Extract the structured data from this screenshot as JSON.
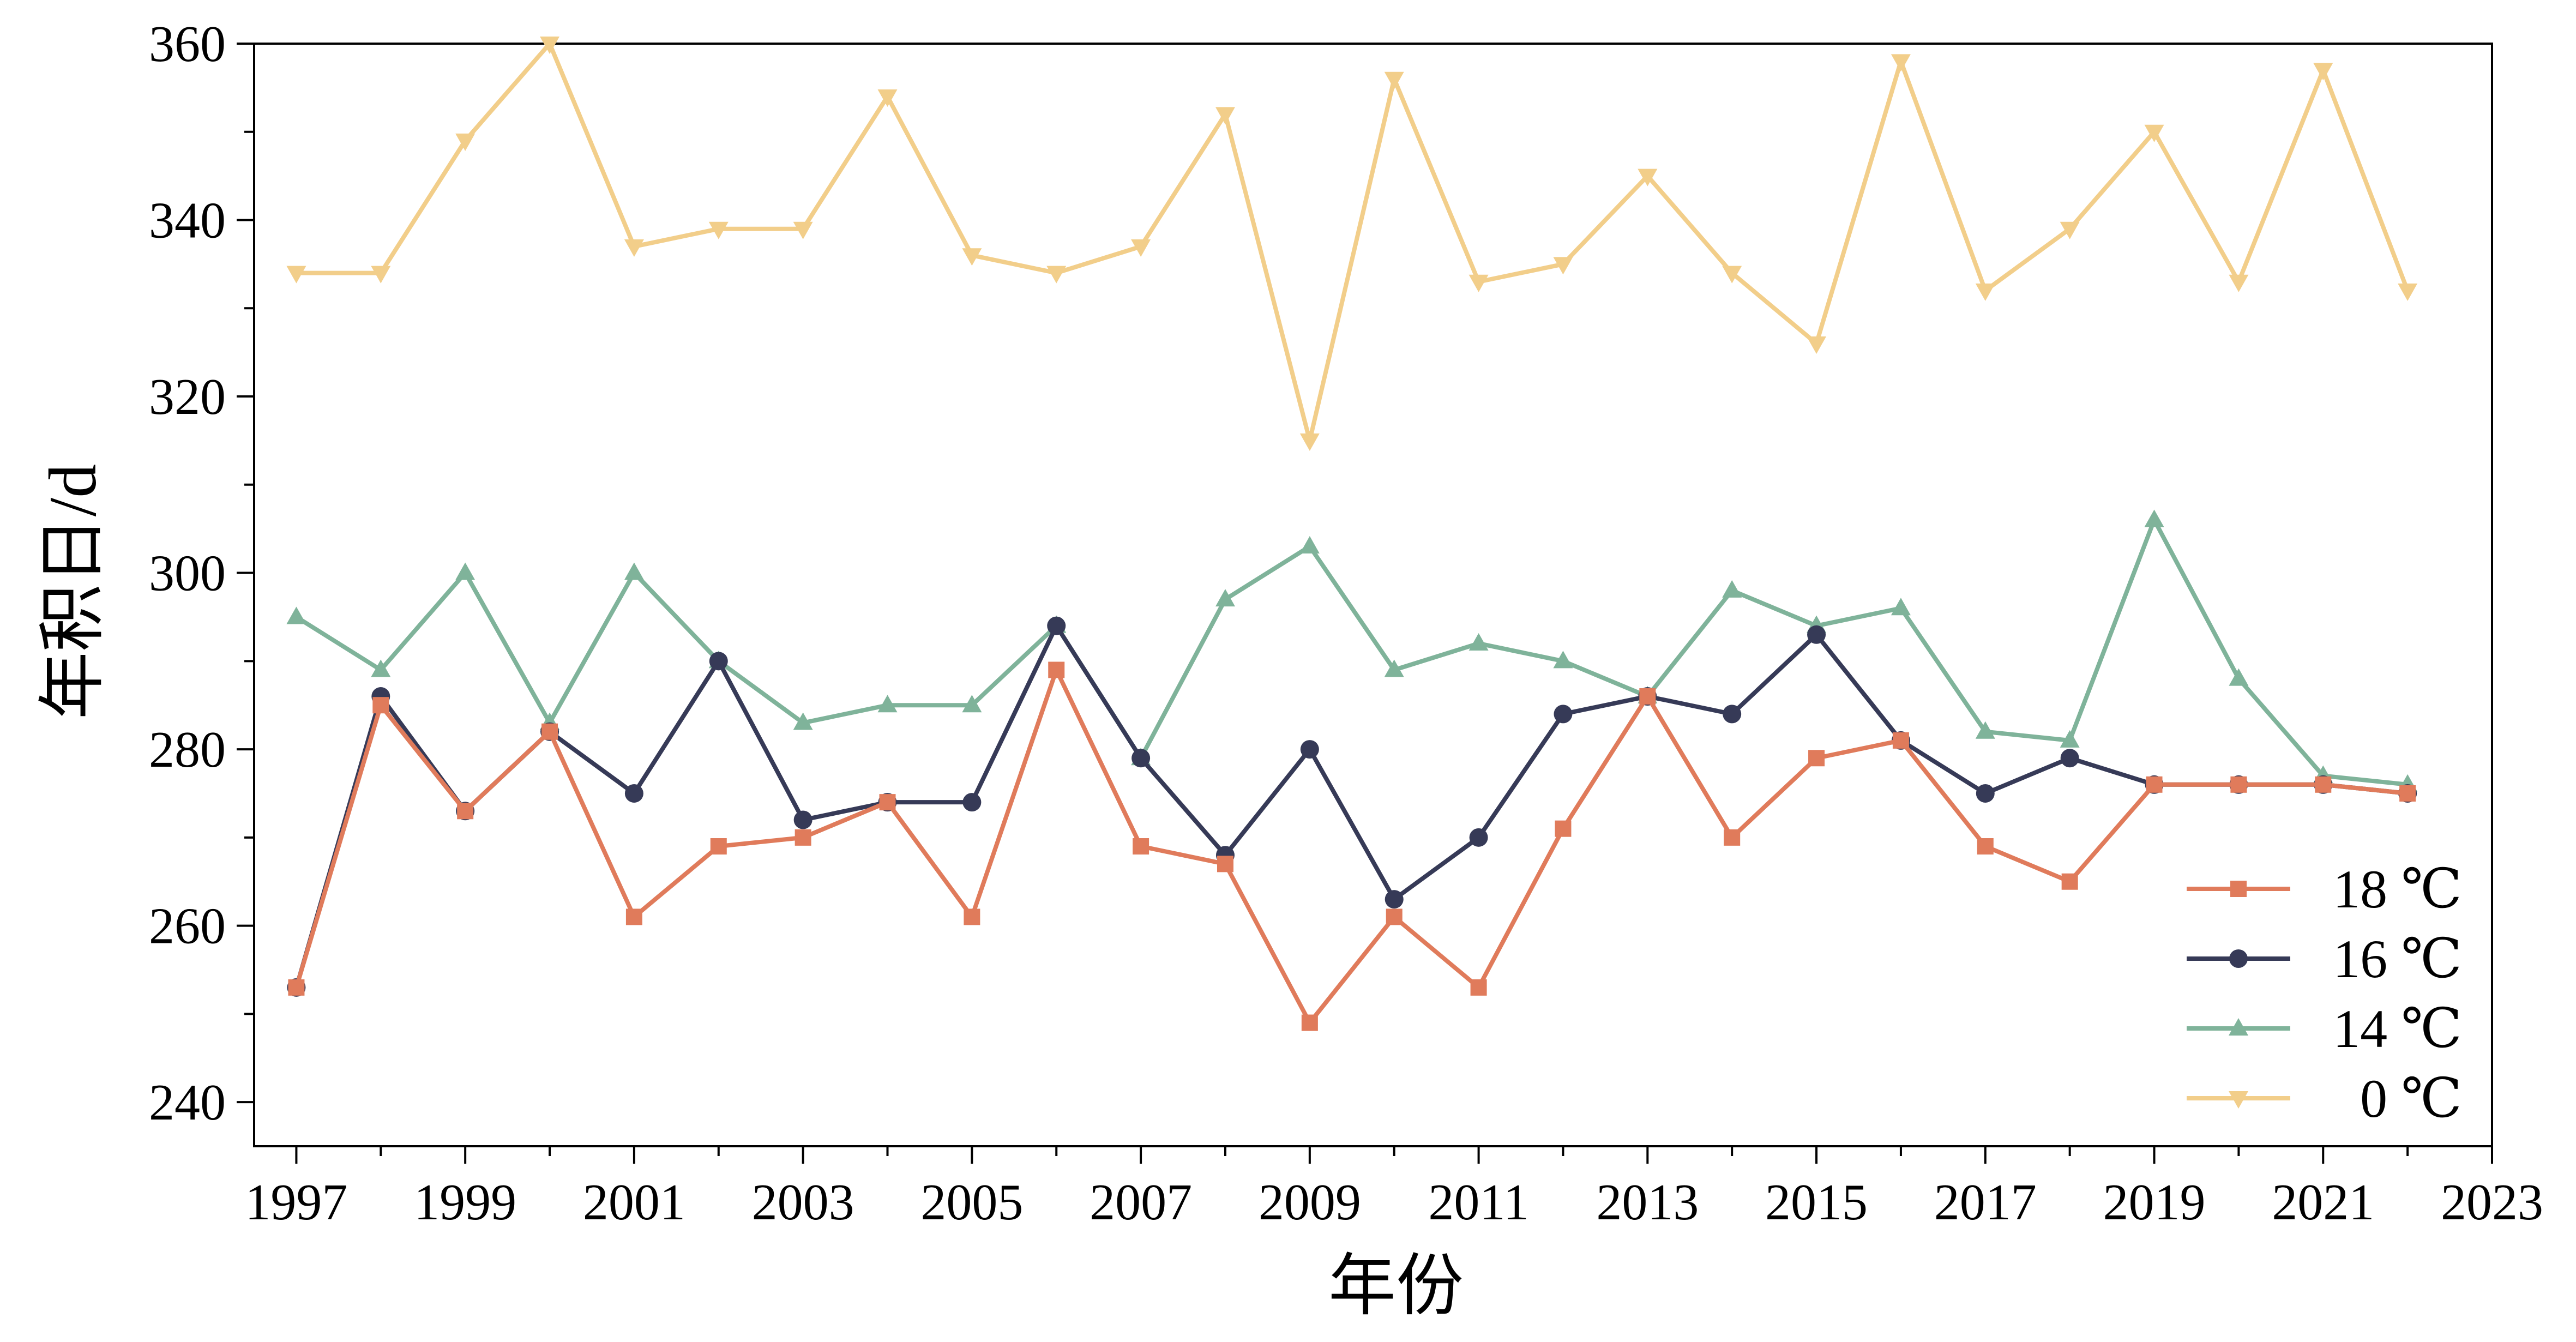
{
  "chart_data": {
    "type": "line",
    "title": "",
    "xlabel": "年份",
    "ylabel": "年积日/d",
    "xlim": [
      1996.5,
      2023
    ],
    "ylim": [
      235,
      360
    ],
    "xticks": [
      1997,
      1999,
      2001,
      2003,
      2005,
      2007,
      2009,
      2011,
      2013,
      2015,
      2017,
      2019,
      2021,
      2023
    ],
    "yticks": [
      240,
      260,
      280,
      300,
      320,
      340,
      360
    ],
    "grid": false,
    "legend_position": "bottom-right",
    "x": [
      1997,
      1998,
      1999,
      2000,
      2001,
      2002,
      2003,
      2004,
      2005,
      2006,
      2007,
      2008,
      2009,
      2010,
      2011,
      2012,
      2013,
      2014,
      2015,
      2016,
      2017,
      2018,
      2019,
      2020,
      2021,
      2022
    ],
    "series": [
      {
        "name": "18 ℃",
        "color": "#E07B5B",
        "marker": "square",
        "values": [
          253,
          285,
          273,
          282,
          261,
          269,
          270,
          274,
          261,
          289,
          269,
          267,
          249,
          261,
          253,
          271,
          286,
          270,
          279,
          281,
          269,
          265,
          276,
          276,
          276,
          275
        ]
      },
      {
        "name": "16 ℃",
        "color": "#363A57",
        "marker": "circle",
        "values": [
          253,
          286,
          273,
          282,
          275,
          290,
          272,
          274,
          274,
          294,
          279,
          268,
          280,
          263,
          270,
          284,
          286,
          284,
          293,
          281,
          275,
          279,
          276,
          276,
          276,
          275
        ]
      },
      {
        "name": "14 ℃",
        "color": "#7FB39A",
        "marker": "triangle-up",
        "values": [
          295,
          289,
          300,
          283,
          300,
          290,
          283,
          285,
          285,
          294,
          279,
          297,
          303,
          289,
          292,
          290,
          286,
          298,
          294,
          296,
          282,
          281,
          306,
          288,
          277,
          276
        ]
      },
      {
        "name": "0 ℃",
        "color": "#F2CE8A",
        "marker": "triangle-down",
        "values": [
          334,
          334,
          349,
          360,
          337,
          339,
          339,
          354,
          336,
          334,
          337,
          352,
          315,
          356,
          333,
          335,
          345,
          334,
          326,
          358,
          332,
          339,
          350,
          333,
          357,
          332
        ]
      }
    ]
  }
}
